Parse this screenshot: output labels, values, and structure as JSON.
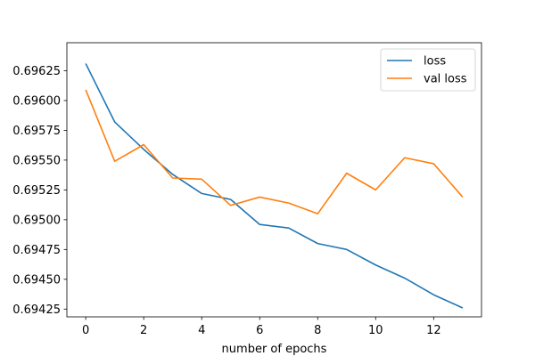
{
  "chart_data": {
    "type": "line",
    "xlabel": "number of epochs",
    "ylabel": "",
    "x": [
      0,
      1,
      2,
      3,
      4,
      5,
      6,
      7,
      8,
      9,
      10,
      11,
      12,
      13
    ],
    "xlim": [
      -0.65,
      13.65
    ],
    "ylim": [
      0.694185,
      0.696485
    ],
    "xticks": [
      0,
      2,
      4,
      6,
      8,
      10,
      12
    ],
    "xtick_labels": [
      "0",
      "2",
      "4",
      "6",
      "8",
      "10",
      "12"
    ],
    "yticks": [
      0.69425,
      0.6945,
      0.69475,
      0.695,
      0.69525,
      0.6955,
      0.69575,
      0.696,
      0.69625
    ],
    "ytick_labels": [
      "0.69425",
      "0.69450",
      "0.69475",
      "0.69500",
      "0.69525",
      "0.69550",
      "0.69575",
      "0.69600",
      "0.69625"
    ],
    "grid": false,
    "legend": "top-right",
    "series": [
      {
        "name": "loss",
        "color": "#1f77b4",
        "values": [
          0.69631,
          0.69582,
          0.69559,
          0.69538,
          0.69522,
          0.69517,
          0.69496,
          0.69493,
          0.6948,
          0.69475,
          0.69462,
          0.69451,
          0.69437,
          0.69426
        ]
      },
      {
        "name": "val loss",
        "color": "#ff7f0e",
        "values": [
          0.69609,
          0.69549,
          0.69563,
          0.69535,
          0.69534,
          0.69512,
          0.69519,
          0.69514,
          0.69505,
          0.69539,
          0.69525,
          0.69552,
          0.69547,
          0.69519
        ]
      }
    ]
  }
}
